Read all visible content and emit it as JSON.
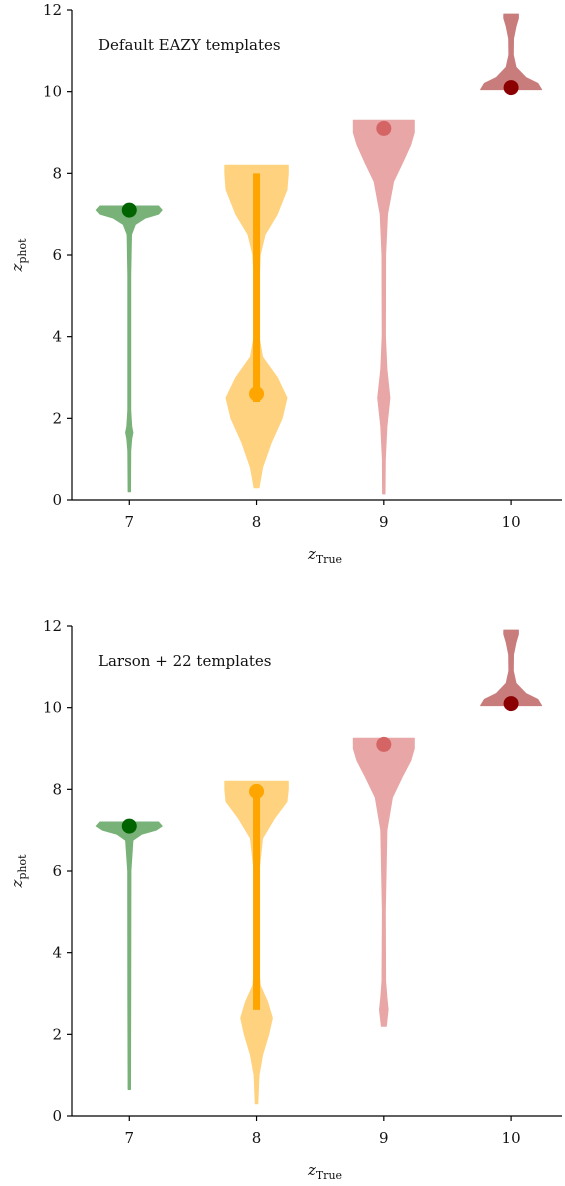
{
  "chart_data": [
    {
      "type": "violin",
      "title": "Default EAZY templates",
      "xlabel": "z",
      "xlabel_sub": "True",
      "ylabel": "z",
      "ylabel_sub": "phot",
      "xlim": [
        6.55,
        10.4
      ],
      "ylim": [
        0,
        12
      ],
      "xticks": [
        "7",
        "8",
        "9",
        "10"
      ],
      "yticks": [
        "0",
        "2",
        "4",
        "6",
        "8",
        "10",
        "12"
      ],
      "grid": false,
      "violins": [
        {
          "x": 7,
          "color": "#78b278",
          "marker_color": "#006400",
          "median": 7.1,
          "iqr": null,
          "density": [
            [
              0.2,
              0.01
            ],
            [
              1.2,
              0.012
            ],
            [
              1.5,
              0.02
            ],
            [
              1.65,
              0.03
            ],
            [
              1.8,
              0.02
            ],
            [
              2.2,
              0.012
            ],
            [
              5.5,
              0.012
            ],
            [
              6.5,
              0.018
            ],
            [
              6.75,
              0.05
            ],
            [
              6.9,
              0.13
            ],
            [
              7.0,
              0.24
            ],
            [
              7.1,
              0.27
            ],
            [
              7.2,
              0.24
            ]
          ]
        },
        {
          "x": 8,
          "color": "#ffd27f",
          "marker_color": "#ffa500",
          "median": 2.6,
          "iqr": [
            2.4,
            8.0
          ],
          "density": [
            [
              0.3,
              0.02
            ],
            [
              0.8,
              0.05
            ],
            [
              1.4,
              0.12
            ],
            [
              2.0,
              0.21
            ],
            [
              2.5,
              0.25
            ],
            [
              3.0,
              0.17
            ],
            [
              3.5,
              0.05
            ],
            [
              4.0,
              0.02
            ],
            [
              5.0,
              0.015
            ],
            [
              6.0,
              0.03
            ],
            [
              6.5,
              0.07
            ],
            [
              7.0,
              0.17
            ],
            [
              7.6,
              0.25
            ],
            [
              8.0,
              0.26
            ],
            [
              8.2,
              0.26
            ]
          ]
        },
        {
          "x": 9,
          "color": "#e8a6a6",
          "marker_color": "#d56464",
          "median": 9.1,
          "iqr": null,
          "density": [
            [
              0.15,
              0.01
            ],
            [
              1.0,
              0.012
            ],
            [
              1.8,
              0.025
            ],
            [
              2.5,
              0.05
            ],
            [
              3.2,
              0.025
            ],
            [
              4.0,
              0.013
            ],
            [
              6.0,
              0.015
            ],
            [
              7.0,
              0.03
            ],
            [
              7.8,
              0.08
            ],
            [
              8.3,
              0.16
            ],
            [
              8.7,
              0.22
            ],
            [
              9.0,
              0.25
            ],
            [
              9.3,
              0.25
            ]
          ]
        },
        {
          "x": 10,
          "color": "#c97c7c",
          "marker_color": "#8b0000",
          "median": 10.1,
          "iqr": null,
          "density": [
            [
              10.05,
              0.25
            ],
            [
              10.2,
              0.22
            ],
            [
              10.35,
              0.12
            ],
            [
              10.6,
              0.04
            ],
            [
              10.9,
              0.018
            ],
            [
              11.3,
              0.02
            ],
            [
              11.6,
              0.04
            ],
            [
              11.8,
              0.06
            ],
            [
              11.9,
              0.06
            ]
          ]
        }
      ]
    },
    {
      "type": "violin",
      "title": "Larson +  22 templates",
      "xlabel": "z",
      "xlabel_sub": "True",
      "ylabel": "z",
      "ylabel_sub": "phot",
      "xlim": [
        6.55,
        10.4
      ],
      "ylim": [
        0,
        12
      ],
      "xticks": [
        "7",
        "8",
        "9",
        "10"
      ],
      "yticks": [
        "0",
        "2",
        "4",
        "6",
        "8",
        "10",
        "12"
      ],
      "grid": false,
      "violins": [
        {
          "x": 7,
          "color": "#78b278",
          "marker_color": "#006400",
          "median": 7.1,
          "iqr": null,
          "density": [
            [
              0.65,
              0.01
            ],
            [
              3.0,
              0.012
            ],
            [
              6.0,
              0.013
            ],
            [
              6.75,
              0.03
            ],
            [
              6.9,
              0.1
            ],
            [
              7.0,
              0.22
            ],
            [
              7.1,
              0.27
            ],
            [
              7.2,
              0.24
            ]
          ]
        },
        {
          "x": 8,
          "color": "#ffd27f",
          "marker_color": "#ffa500",
          "median": 7.95,
          "iqr": [
            2.6,
            7.9
          ],
          "density": [
            [
              0.3,
              0.01
            ],
            [
              1.0,
              0.02
            ],
            [
              1.5,
              0.05
            ],
            [
              2.0,
              0.1
            ],
            [
              2.4,
              0.13
            ],
            [
              2.8,
              0.09
            ],
            [
              3.2,
              0.03
            ],
            [
              3.8,
              0.012
            ],
            [
              5.0,
              0.012
            ],
            [
              6.0,
              0.02
            ],
            [
              6.8,
              0.05
            ],
            [
              7.3,
              0.15
            ],
            [
              7.7,
              0.25
            ],
            [
              8.0,
              0.26
            ],
            [
              8.2,
              0.26
            ]
          ]
        },
        {
          "x": 9,
          "color": "#e8a6a6",
          "marker_color": "#d56464",
          "median": 9.1,
          "iqr": null,
          "density": [
            [
              2.2,
              0.02
            ],
            [
              2.6,
              0.035
            ],
            [
              2.9,
              0.025
            ],
            [
              3.3,
              0.015
            ],
            [
              5.0,
              0.012
            ],
            [
              7.0,
              0.025
            ],
            [
              7.8,
              0.07
            ],
            [
              8.3,
              0.15
            ],
            [
              8.7,
              0.22
            ],
            [
              9.0,
              0.25
            ],
            [
              9.25,
              0.25
            ]
          ]
        },
        {
          "x": 10,
          "color": "#c97c7c",
          "marker_color": "#8b0000",
          "median": 10.1,
          "iqr": null,
          "density": [
            [
              10.05,
              0.25
            ],
            [
              10.2,
              0.22
            ],
            [
              10.35,
              0.12
            ],
            [
              10.6,
              0.04
            ],
            [
              10.9,
              0.018
            ],
            [
              11.3,
              0.02
            ],
            [
              11.6,
              0.04
            ],
            [
              11.8,
              0.06
            ],
            [
              11.9,
              0.06
            ]
          ]
        }
      ]
    }
  ]
}
